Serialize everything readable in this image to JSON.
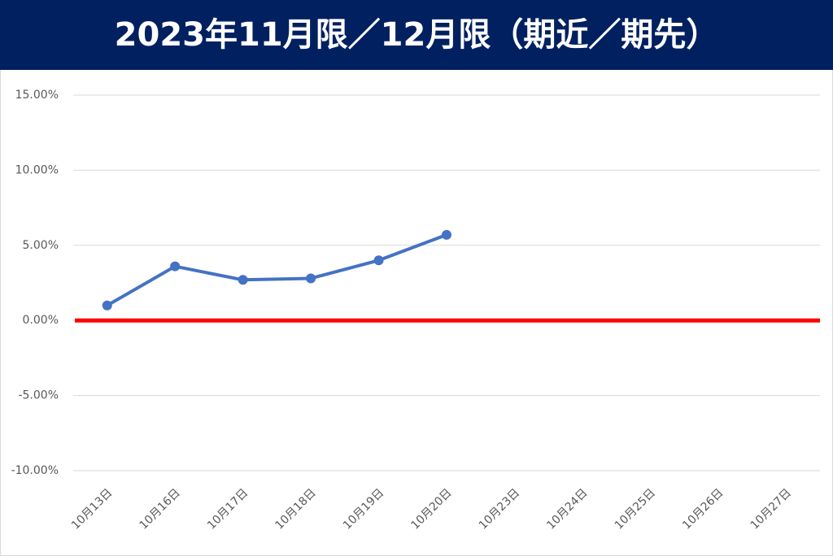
{
  "chart_data": {
    "type": "line",
    "title": "2023年11月限／12月限（期近／期先）",
    "categories": [
      "10月13日",
      "10月16日",
      "10月17日",
      "10月18日",
      "10月19日",
      "10月20日",
      "10月23日",
      "10月24日",
      "10月25日",
      "10月26日",
      "10月27日"
    ],
    "series": [
      {
        "color": "#4472c4",
        "values": [
          1.0,
          3.6,
          2.7,
          2.8,
          4.0,
          5.7,
          null,
          null,
          null,
          null,
          null
        ]
      }
    ],
    "baseline": {
      "value": 0,
      "color": "#ff0000"
    },
    "ylim": [
      -10,
      15
    ],
    "yticks": [
      {
        "value": -10,
        "label": "-10.00%"
      },
      {
        "value": -5,
        "label": "-5.00%"
      },
      {
        "value": 0,
        "label": "0.00%"
      },
      {
        "value": 5,
        "label": "5.00%"
      },
      {
        "value": 10,
        "label": "10.00%"
      },
      {
        "value": 15,
        "label": "15.00%"
      }
    ],
    "grid": true
  }
}
